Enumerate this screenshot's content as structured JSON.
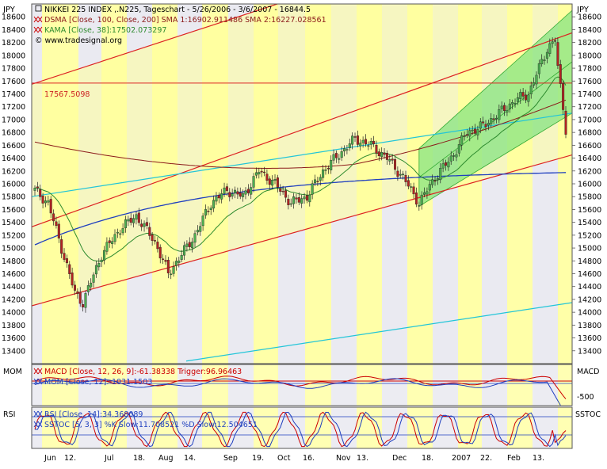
{
  "chart_data": {
    "type": "candlestick",
    "instrument_header": "NIKKEI 225 INDEX ,.N225, Tageschart - 5/26/2006 - 3/6/2007 - 16844.5",
    "dsma_legend": "DSMA [Close, 100, Close, 200] SMA 1:16902.911486 SMA 2:16227.028561",
    "kama_legend": "KAMA [Close, 38]:17502.073297",
    "watermark": "© www.tradesignal.org",
    "currency_left": "JPY",
    "currency_right": "JPY",
    "y_ticks": [
      13400,
      13600,
      13800,
      14000,
      14200,
      14400,
      14600,
      14800,
      15000,
      15200,
      15400,
      15600,
      15800,
      16000,
      16200,
      16400,
      16600,
      16800,
      17000,
      17200,
      17400,
      17600,
      17800,
      18000,
      18200,
      18400,
      18600
    ],
    "ylim": [
      13200,
      18800
    ],
    "hline_label": "17567.5098",
    "hline_value": 17567.5098,
    "x_labels": [
      "Jun",
      "12.",
      "Jul",
      "18.",
      "Aug",
      "14.",
      "Sep",
      "19.",
      "Oct",
      "16.",
      "Nov",
      "13.",
      "Dec",
      "18.",
      "2007",
      "22.",
      "Feb",
      "13."
    ],
    "macd_panel": {
      "left_label": "MOM",
      "right_label": "MACD",
      "macd_legend": "MACD [Close, 12, 26, 9]:-61.38338 Trigger:96.96463",
      "mom_legend": "MOM [Close, 12]:-1031.1503",
      "tick": "-500",
      "colors": {
        "macd": "#cc0000",
        "trigger": "#1f3fbf",
        "mom": "#1f3fbf"
      }
    },
    "stoch_panel": {
      "left_label": "RSI",
      "right_label": "SSTOC",
      "rsi_legend": "RSI [Close, 14]:34.368089",
      "sstoc_legend": "SSTOC [5, 3, 3] %K Slow:11.708521 %D Slow:12.504651",
      "colors": {
        "k": "#cc0000",
        "d": "#1f3fbf"
      }
    },
    "colors": {
      "up": "#4caf50",
      "down": "#b22222",
      "dsma_fast": "#8b1a1a",
      "dsma_slow": "#1f3fbf",
      "kama": "#2e8b2e",
      "channel": "#dd2222",
      "cyan": "#22c5d8",
      "green_band": "#7fe27f",
      "yellow_band": "#ffff99",
      "grey_band": "#e6e6ee"
    }
  }
}
